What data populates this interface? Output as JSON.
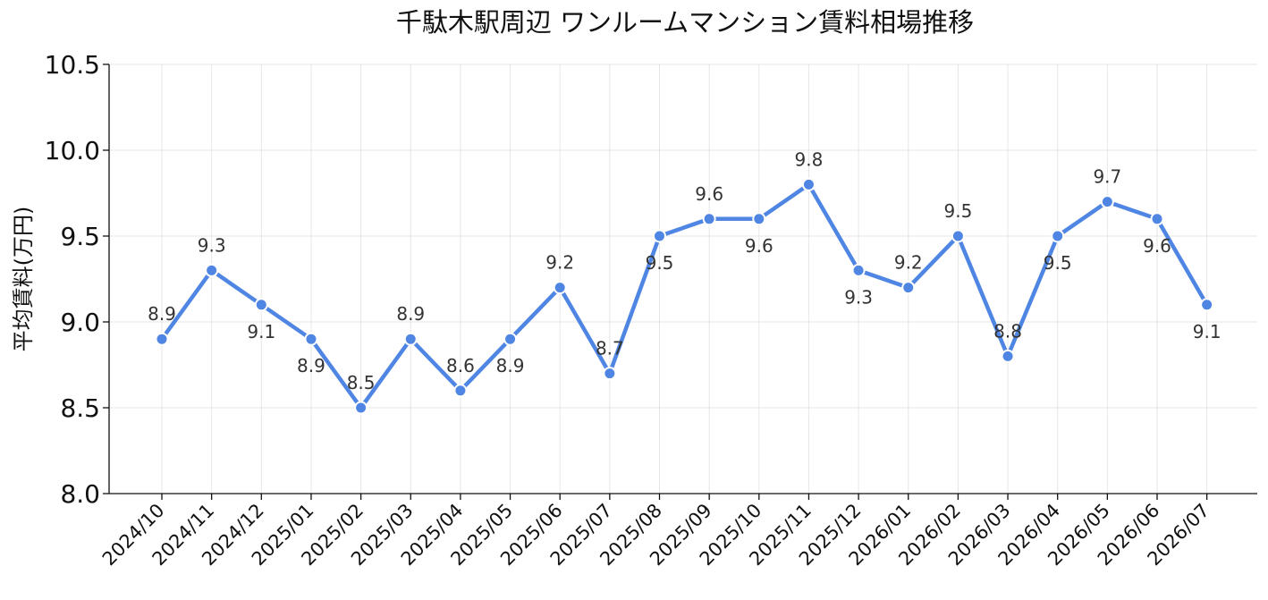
{
  "chart_data": {
    "type": "line",
    "title": "千駄木駅周辺 ワンルームマンション賃料相場推移",
    "xlabel": "",
    "ylabel": "平均賃料(万円)",
    "ylim": [
      8.0,
      10.5
    ],
    "yticks": [
      "8.0",
      "8.5",
      "9.0",
      "9.5",
      "10.0",
      "10.5"
    ],
    "grid": true,
    "categories": [
      "2024/10",
      "2024/11",
      "2024/12",
      "2025/01",
      "2025/02",
      "2025/03",
      "2025/04",
      "2025/05",
      "2025/06",
      "2025/07",
      "2025/08",
      "2025/09",
      "2025/10",
      "2025/11",
      "2025/12",
      "2026/01",
      "2026/02",
      "2026/03",
      "2026/04",
      "2026/05",
      "2026/06",
      "2026/07"
    ],
    "series": [
      {
        "color": "#4f86e3",
        "values": [
          8.9,
          9.3,
          9.1,
          8.9,
          8.5,
          8.9,
          8.6,
          8.9,
          9.2,
          8.7,
          9.5,
          9.6,
          9.6,
          9.8,
          9.3,
          9.2,
          9.5,
          8.8,
          9.5,
          9.7,
          9.6,
          9.1
        ],
        "data_labels": [
          "8.9",
          "9.3",
          "9.1",
          "8.9",
          "8.5",
          "8.9",
          "8.6",
          "8.9",
          "9.2",
          "8.7",
          "9.5",
          "9.6",
          "9.6",
          "9.8",
          "9.3",
          "9.2",
          "9.5",
          "8.8",
          "9.5",
          "9.7",
          "9.6",
          "9.1"
        ]
      }
    ]
  }
}
